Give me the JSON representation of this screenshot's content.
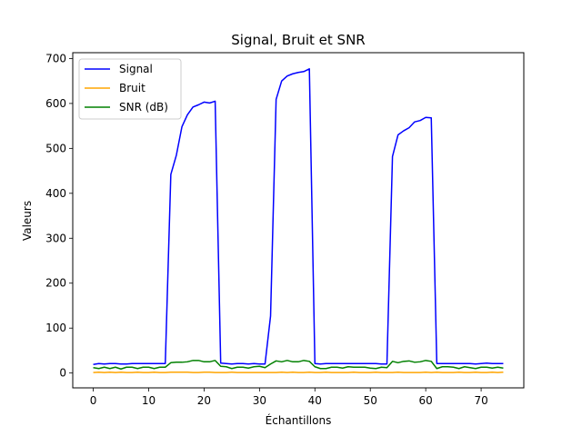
{
  "chart_data": {
    "type": "line",
    "title": "Signal, Bruit et SNR",
    "xlabel": "Échantillons",
    "ylabel": "Valeurs",
    "xlim": [
      -3.7,
      77.7
    ],
    "ylim": [
      -33,
      713
    ],
    "xticks": [
      0,
      10,
      20,
      30,
      40,
      50,
      60,
      70
    ],
    "yticks": [
      0,
      100,
      200,
      300,
      400,
      500,
      600,
      700
    ],
    "grid": false,
    "legend_position": "top-left",
    "x": [
      0,
      1,
      2,
      3,
      4,
      5,
      6,
      7,
      8,
      9,
      10,
      11,
      12,
      13,
      14,
      15,
      16,
      17,
      18,
      19,
      20,
      21,
      22,
      23,
      24,
      25,
      26,
      27,
      28,
      29,
      30,
      31,
      32,
      33,
      34,
      35,
      36,
      37,
      38,
      39,
      40,
      41,
      42,
      43,
      44,
      45,
      46,
      47,
      48,
      49,
      50,
      51,
      52,
      53,
      54,
      55,
      56,
      57,
      58,
      59,
      60,
      61,
      62,
      63,
      64,
      65,
      66,
      67,
      68,
      69,
      70,
      71,
      72,
      73,
      74
    ],
    "series": [
      {
        "name": "Signal",
        "color": "#0000ff",
        "values": [
          19,
          21,
          20,
          21,
          21,
          20,
          20,
          21,
          21,
          21,
          21,
          21,
          21,
          21,
          442,
          485,
          548,
          575,
          592,
          597,
          603,
          601,
          605,
          22,
          21,
          20,
          21,
          21,
          20,
          21,
          20,
          20,
          127,
          609,
          650,
          661,
          666,
          669,
          671,
          677,
          21,
          20,
          21,
          21,
          21,
          21,
          21,
          21,
          21,
          21,
          21,
          21,
          20,
          20,
          482,
          530,
          539,
          546,
          559,
          562,
          569,
          568,
          21,
          21,
          21,
          21,
          21,
          21,
          21,
          20,
          21,
          22,
          21,
          21,
          21
        ]
      },
      {
        "name": "Bruit",
        "color": "#ffa500",
        "values": [
          1,
          2,
          1,
          2,
          1,
          2,
          1,
          1,
          2,
          1,
          1,
          2,
          1,
          1,
          2,
          2,
          2,
          2,
          1,
          1,
          2,
          2,
          1,
          1,
          1,
          2,
          1,
          1,
          1,
          1,
          1,
          1,
          1,
          1,
          2,
          1,
          2,
          1,
          1,
          2,
          1,
          1,
          2,
          1,
          1,
          1,
          1,
          2,
          1,
          1,
          1,
          2,
          1,
          1,
          1,
          2,
          1,
          1,
          1,
          1,
          2,
          1,
          2,
          1,
          1,
          1,
          2,
          1,
          1,
          2,
          1,
          1,
          2,
          1,
          2
        ]
      },
      {
        "name": "SNR (dB)",
        "color": "#008000",
        "values": [
          12,
          10,
          13,
          10,
          13,
          9,
          13,
          13,
          10,
          13,
          13,
          10,
          13,
          13,
          23,
          24,
          24,
          25,
          28,
          28,
          25,
          25,
          28,
          15,
          14,
          10,
          13,
          13,
          11,
          14,
          15,
          12,
          20,
          27,
          25,
          28,
          25,
          25,
          28,
          26,
          14,
          10,
          10,
          13,
          13,
          11,
          14,
          13,
          13,
          13,
          11,
          10,
          13,
          12,
          26,
          23,
          26,
          27,
          24,
          25,
          28,
          26,
          10,
          14,
          14,
          13,
          10,
          14,
          12,
          10,
          13,
          13,
          11,
          13,
          11
        ]
      }
    ]
  }
}
